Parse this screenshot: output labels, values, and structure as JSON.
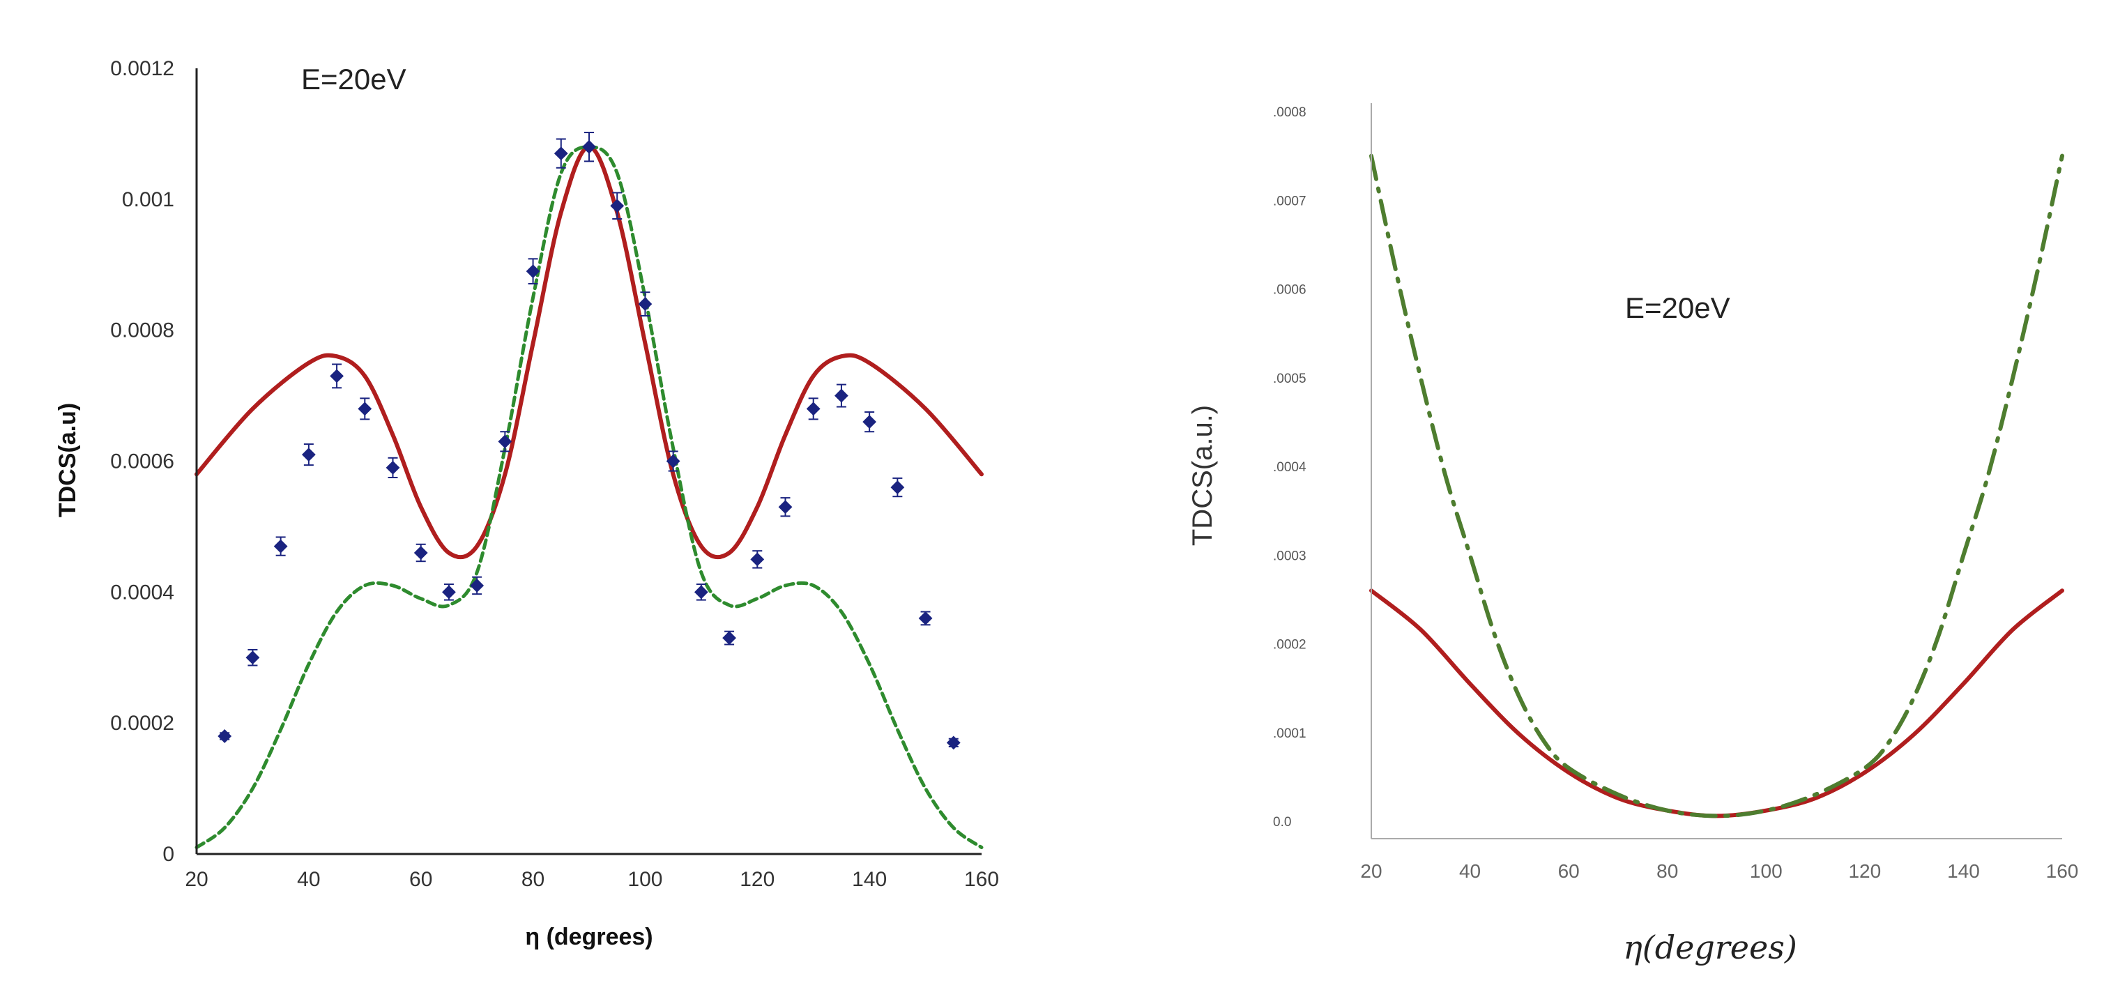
{
  "chart_data": [
    {
      "type": "line",
      "label_text": "E=20eV",
      "xlabel": "η (degrees)",
      "ylabel": "TDCS(a.u)",
      "xlim": [
        20,
        160
      ],
      "ylim": [
        0,
        0.0012
      ],
      "x_ticks": [
        20,
        40,
        60,
        80,
        100,
        120,
        140,
        160
      ],
      "x_tick_labels": [
        "20",
        "40",
        "60",
        "80",
        "100",
        "120",
        "140",
        "160"
      ],
      "y_ticks": [
        0,
        0.0002,
        0.0004,
        0.0006,
        0.0008,
        0.001,
        0.0012
      ],
      "y_tick_labels": [
        "0",
        "0.0002",
        "0.0004",
        "0.0006",
        "0.0008",
        "0.001",
        "0.0012"
      ],
      "colors": {
        "solid": "#b01e1e",
        "dashed": "#2e8b2e",
        "points": "#1a2380",
        "axis": "#222222"
      },
      "series": [
        {
          "name": "solid",
          "style": "solid",
          "x": [
            20,
            30,
            40,
            45,
            50,
            55,
            60,
            65,
            70,
            75,
            80,
            85,
            90,
            95,
            100,
            105,
            110,
            115,
            120,
            125,
            130,
            135,
            140,
            150,
            160
          ],
          "y": [
            0.00058,
            0.00068,
            0.00075,
            0.00076,
            0.00073,
            0.00064,
            0.00053,
            0.00046,
            0.00047,
            0.00058,
            0.00078,
            0.00098,
            0.00108,
            0.00098,
            0.00078,
            0.00058,
            0.00047,
            0.00046,
            0.00053,
            0.00064,
            0.00073,
            0.00076,
            0.00075,
            0.00068,
            0.00058
          ]
        },
        {
          "name": "dashed",
          "style": "dashed",
          "x": [
            20,
            25,
            30,
            35,
            40,
            45,
            50,
            55,
            60,
            65,
            70,
            75,
            80,
            85,
            90,
            95,
            100,
            105,
            110,
            115,
            120,
            125,
            130,
            135,
            140,
            145,
            150,
            155,
            160
          ],
          "y": [
            1e-05,
            4e-05,
            0.0001,
            0.00019,
            0.00029,
            0.00037,
            0.00041,
            0.00041,
            0.00039,
            0.00038,
            0.00043,
            0.00062,
            0.00085,
            0.00104,
            0.00108,
            0.00104,
            0.00085,
            0.00062,
            0.00043,
            0.00038,
            0.00039,
            0.00041,
            0.00041,
            0.00037,
            0.00029,
            0.00019,
            0.0001,
            4e-05,
            1e-05
          ]
        },
        {
          "name": "experimental points",
          "style": "points",
          "x": [
            25,
            30,
            35,
            40,
            45,
            50,
            55,
            60,
            65,
            70,
            75,
            80,
            85,
            90,
            95,
            100,
            105,
            110,
            115,
            120,
            125,
            130,
            135,
            140,
            145,
            150,
            155
          ],
          "y": [
            0.00018,
            0.0003,
            0.00047,
            0.00061,
            0.00073,
            0.00068,
            0.00059,
            0.00046,
            0.0004,
            0.00041,
            0.00063,
            0.00089,
            0.00107,
            0.00108,
            0.00099,
            0.00084,
            0.0006,
            0.0004,
            0.00033,
            0.00045,
            0.00053,
            0.00068,
            0.0007,
            0.00066,
            0.00056,
            0.00036,
            0.00017
          ],
          "err": [
            5e-06,
            1.2e-05,
            1.4e-05,
            1.6e-05,
            1.8e-05,
            1.6e-05,
            1.5e-05,
            1.3e-05,
            1.2e-05,
            1.3e-05,
            1.5e-05,
            1.9e-05,
            2.2e-05,
            2.2e-05,
            2e-05,
            1.8e-05,
            1.5e-05,
            1.2e-05,
            1e-05,
            1.3e-05,
            1.4e-05,
            1.6e-05,
            1.7e-05,
            1.5e-05,
            1.4e-05,
            1e-05,
            6e-06
          ]
        }
      ]
    },
    {
      "type": "line",
      "label_text": "E=20eV",
      "xlabel": "η(degrees)",
      "ylabel": "TDCS(a.u.)",
      "xlim": [
        20,
        160
      ],
      "ylim": [
        0,
        0.0008
      ],
      "x_ticks": [
        20,
        40,
        60,
        80,
        100,
        120,
        140,
        160
      ],
      "x_tick_labels": [
        "20",
        "40",
        "60",
        "80",
        "100",
        "120",
        "140",
        "160"
      ],
      "y_ticks": [
        0,
        0.0001,
        0.0002,
        0.0003,
        0.0004,
        0.0005,
        0.0006,
        0.0007,
        0.0008
      ],
      "y_tick_labels": [
        "0.0",
        ".0001",
        ".0002",
        ".0003",
        ".0004",
        ".0005",
        ".0006",
        ".0007",
        ".0008"
      ],
      "colors": {
        "solid": "#b01e1e",
        "dashdot": "#4e7d2f",
        "axis": "#aaaaaa"
      },
      "series": [
        {
          "name": "solid",
          "style": "solid",
          "x": [
            20,
            30,
            40,
            50,
            60,
            70,
            80,
            90,
            100,
            110,
            120,
            130,
            140,
            150,
            160
          ],
          "y": [
            0.00026,
            0.000216,
            0.000155,
            9.8e-05,
            5.5e-05,
            2.6e-05,
            1.2e-05,
            6e-06,
            1.2e-05,
            2.6e-05,
            5.5e-05,
            9.8e-05,
            0.000155,
            0.000216,
            0.00026
          ]
        },
        {
          "name": "dash-dot",
          "style": "dashdot",
          "x": [
            20,
            25,
            30,
            35,
            40,
            45,
            50,
            55,
            60,
            70,
            80,
            90,
            100,
            110,
            120,
            125,
            130,
            135,
            140,
            145,
            150,
            155,
            160
          ],
          "y": [
            0.00075,
            0.00062,
            0.0005,
            0.00039,
            0.0003,
            0.00021,
            0.00014,
            9e-05,
            6e-05,
            3e-05,
            1.2e-05,
            6e-06,
            1.2e-05,
            3e-05,
            6e-05,
            9e-05,
            0.00014,
            0.00021,
            0.0003,
            0.00039,
            0.0005,
            0.00062,
            0.00075
          ]
        }
      ]
    }
  ]
}
